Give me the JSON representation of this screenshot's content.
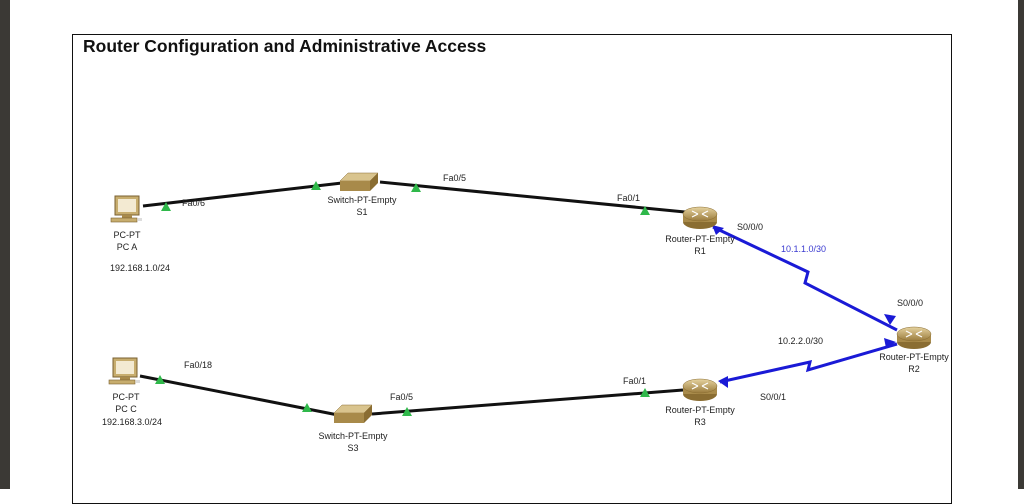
{
  "title": "Router Configuration and Administrative Access",
  "colors": {
    "ethernet_link": "#111111",
    "serial_link": "#1a1ad6",
    "port_up": "#2fb84a",
    "network_label_blue": "#3a3ad0"
  },
  "devices": [
    {
      "id": "pca",
      "icon": "pc-icon",
      "model": "PC-PT",
      "name": "PC A",
      "network": "192.168.1.0/24"
    },
    {
      "id": "s1",
      "icon": "switch-icon",
      "model": "Switch-PT-Empty",
      "name": "S1"
    },
    {
      "id": "r1",
      "icon": "router-icon",
      "model": "Router-PT-Empty",
      "name": "R1"
    },
    {
      "id": "r2",
      "icon": "router-icon",
      "model": "Router-PT-Empty",
      "name": "R2"
    },
    {
      "id": "r3",
      "icon": "router-icon",
      "model": "Router-PT-Empty",
      "name": "R3"
    },
    {
      "id": "s3",
      "icon": "switch-icon",
      "model": "Switch-PT-Empty",
      "name": "S3"
    },
    {
      "id": "pcc",
      "icon": "pc-icon",
      "model": "PC-PT",
      "name": "PC C",
      "network": "192.168.3.0/24"
    }
  ],
  "links": [
    {
      "from": "pca",
      "to": "s1",
      "type": "ethernet",
      "port_label": "Fa0/6"
    },
    {
      "from": "s1",
      "to": "r1",
      "type": "ethernet",
      "port_label": "Fa0/5",
      "port_label_2": "Fa0/1"
    },
    {
      "from": "r1",
      "to": "r2",
      "type": "serial",
      "port_label": "S0/0/0",
      "port_label_2": "S0/0/0",
      "network": "10.1.1.0/30"
    },
    {
      "from": "r3",
      "to": "r2",
      "type": "serial",
      "port_label": "S0/0/1",
      "network": "10.2.2.0/30"
    },
    {
      "from": "pcc",
      "to": "s3",
      "type": "ethernet",
      "port_label": "Fa0/18"
    },
    {
      "from": "s3",
      "to": "r3",
      "type": "ethernet",
      "port_label": "Fa0/5",
      "port_label_2": "Fa0/1"
    }
  ]
}
